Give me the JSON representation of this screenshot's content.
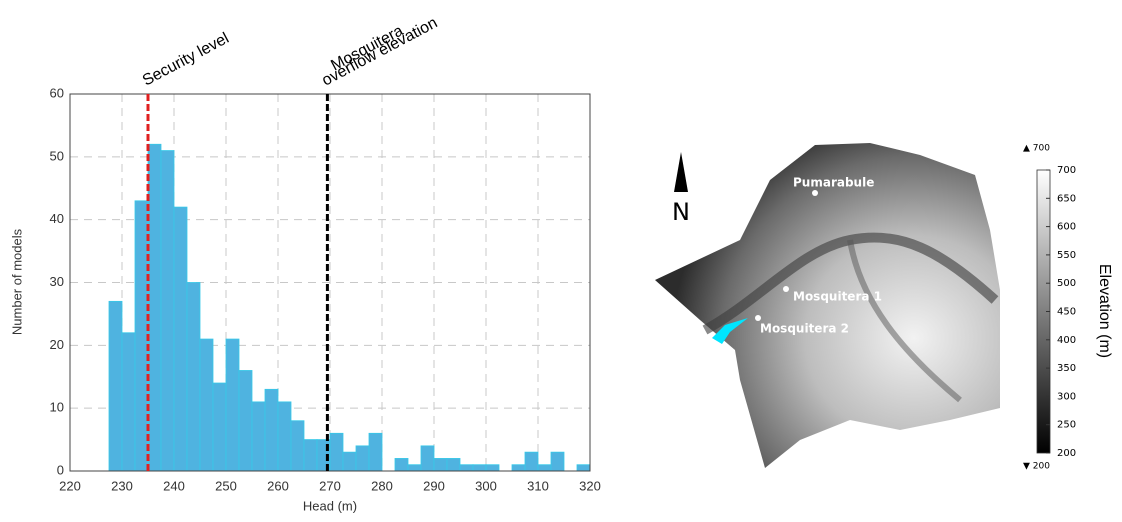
{
  "chart_data": {
    "type": "histogram",
    "xlabel": "Head (m)",
    "ylabel": "Number of models",
    "bins": [
      227.5,
      230,
      232.5,
      235,
      237.5,
      240,
      242.5,
      245,
      247.5,
      250,
      252.5,
      255,
      257.5,
      260,
      262.5,
      265,
      267.5,
      270,
      272.5,
      275,
      277.5,
      280,
      282.5,
      285,
      287.5,
      290,
      292.5,
      295,
      297.5,
      300,
      302.5,
      305,
      307.5,
      310,
      312.5,
      315,
      317.5,
      320
    ],
    "values": [
      27,
      22,
      43,
      52,
      51,
      42,
      30,
      21,
      14,
      21,
      16,
      11,
      13,
      11,
      8,
      5,
      5,
      6,
      3,
      4,
      6,
      0,
      2,
      1,
      4,
      2,
      2,
      1,
      1,
      1,
      0,
      1,
      3,
      1,
      3,
      0,
      1
    ],
    "color": "#4fb3e0",
    "xlim": [
      220,
      320
    ],
    "xticks": [
      220,
      230,
      240,
      250,
      260,
      270,
      280,
      290,
      300,
      310,
      320
    ],
    "ylim": [
      0,
      60
    ],
    "yticks": [
      0,
      10,
      20,
      30,
      40,
      50,
      60
    ],
    "grid": true,
    "vlines": [
      {
        "x": 235,
        "color": "#e02020",
        "label": [
          "Security level"
        ]
      },
      {
        "x": 269.5,
        "color": "#000000",
        "label": [
          "Mosquitera",
          "overflow elevation"
        ]
      }
    ]
  },
  "map": {
    "north": "N",
    "places": [
      "Pumarabule",
      "Mosquitera 1",
      "Mosquitera 2"
    ],
    "colorbar": {
      "title": "Elevation (m)",
      "lim": [
        200,
        700
      ],
      "ticks": [
        200,
        250,
        300,
        350,
        400,
        450,
        500,
        550,
        600,
        650,
        700
      ],
      "over_label": "▲ 700",
      "under_label": "▼ 200"
    }
  }
}
